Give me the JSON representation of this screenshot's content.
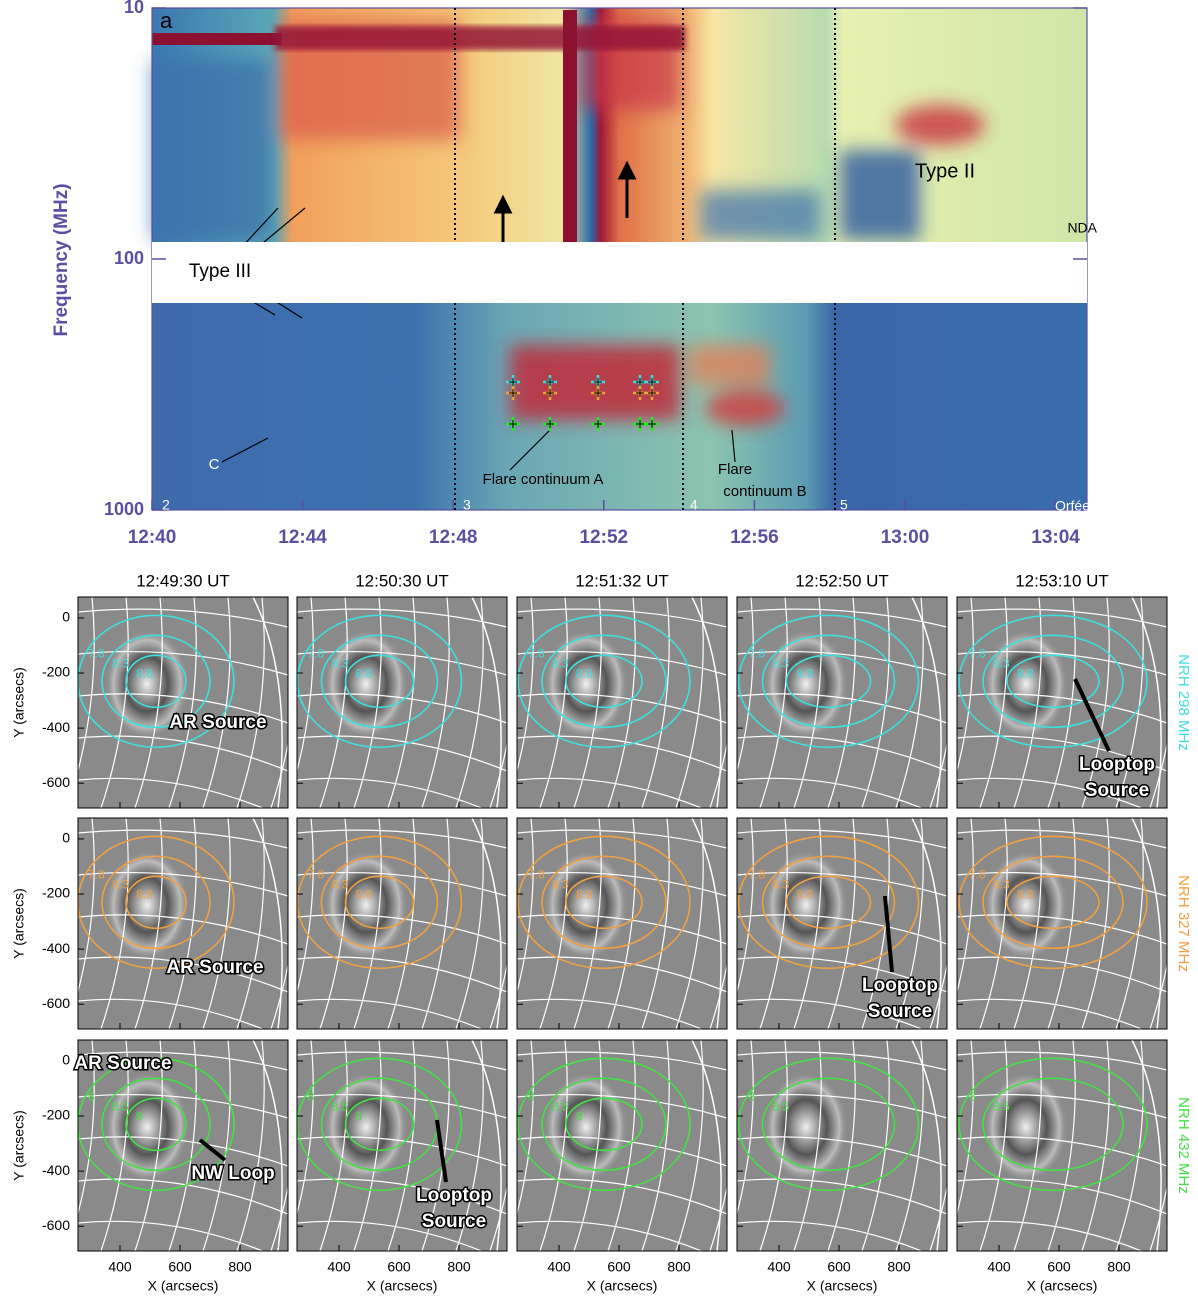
{
  "spectrum": {
    "panel_label": "a",
    "y_label": "Frequency (MHz)",
    "y_scale": "log",
    "ylim": [
      10,
      1000
    ],
    "yticks": [
      10,
      100,
      1000
    ],
    "xticks": [
      "12:40",
      "12:44",
      "12:48",
      "12:52",
      "12:56",
      "13:00",
      "13:04"
    ],
    "markers": [
      "2",
      "3",
      "4",
      "5"
    ],
    "annotations": {
      "type_ii": [
        "Type II"
      ],
      "type_iii": [
        "Type III"
      ],
      "c": [
        "C"
      ],
      "continuum_a": [
        "Flare continuum A"
      ],
      "continuum_b": [
        "Flare",
        "continuum B"
      ]
    },
    "receivers": [
      "NDA",
      "Orfées"
    ]
  },
  "maps": {
    "times": [
      "12:49:30 UT",
      "12:50:30 UT",
      "12:51:32 UT",
      "12:52:50 UT",
      "12:53:10 UT"
    ],
    "x_label": "X (arcsecs)",
    "y_label": "Y (arcsecs)",
    "xlim": [
      260,
      960
    ],
    "ylim": [
      -690,
      76
    ],
    "xticks": [
      400,
      600,
      800
    ],
    "yticks": [
      0,
      -200,
      -400,
      -600
    ],
    "rows": [
      {
        "label": "NRH 298 MHz",
        "color": "#3fdede",
        "panels": [
          {
            "contours": [
              7.8,
              8.3,
              8.8
            ],
            "notes": [
              [
                "AR Source"
              ]
            ]
          },
          {
            "contours": [
              7.8,
              8.3,
              8.8
            ],
            "notes": []
          },
          {
            "contours": [
              7.8,
              8.3,
              8.8
            ],
            "notes": []
          },
          {
            "contours": [
              7.8,
              8.3,
              8.8
            ],
            "notes": []
          },
          {
            "contours": [
              7.8,
              8.3,
              8.8
            ],
            "notes": [
              [
                "Looptop",
                "Source"
              ]
            ]
          }
        ]
      },
      {
        "label": "NRH 327 MHz",
        "color": "#f0a040",
        "panels": [
          {
            "contours": [
              7.8,
              8.3,
              8.8
            ],
            "notes": [
              [
                "AR Source"
              ]
            ]
          },
          {
            "contours": [
              7.8,
              8.3,
              8.8
            ],
            "notes": []
          },
          {
            "contours": [
              7.8,
              8.3,
              8.8
            ],
            "notes": []
          },
          {
            "contours": [
              7.8,
              8.3,
              8.8
            ],
            "notes": [
              [
                "Looptop",
                "Source"
              ]
            ]
          },
          {
            "contours": [
              7.8,
              8.3,
              8.8
            ],
            "notes": []
          }
        ]
      },
      {
        "label": "NRH 432 MHz",
        "color": "#44e044",
        "panels": [
          {
            "contours": [
              8.0,
              8.5,
              9.0
            ],
            "notes": [
              [
                "AR Source"
              ],
              [
                "NW Loop"
              ]
            ]
          },
          {
            "contours": [
              8.0,
              8.5,
              9.0
            ],
            "notes": [
              [
                "Looptop",
                "Source"
              ]
            ]
          },
          {
            "contours": [
              8.0,
              8.5,
              9.0
            ],
            "notes": []
          },
          {
            "contours": [
              8.0,
              8.5
            ],
            "notes": []
          },
          {
            "contours": [
              8.0,
              8.5
            ],
            "notes": []
          }
        ]
      }
    ]
  }
}
